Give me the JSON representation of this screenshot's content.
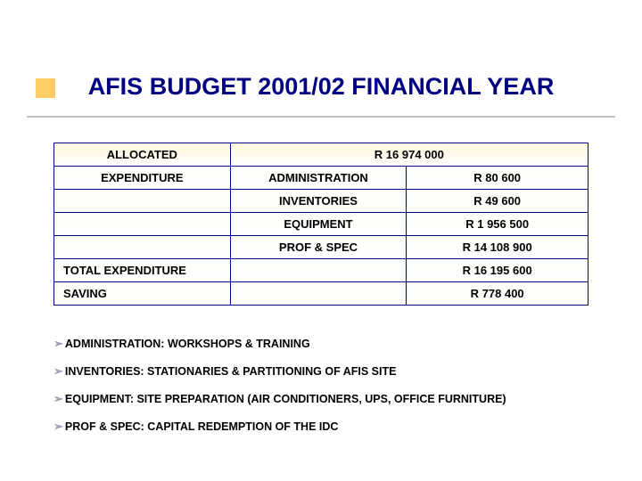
{
  "title": "AFIS BUDGET 2001/02 FINANCIAL YEAR",
  "colors": {
    "title_color": "#000080",
    "border_color": "#000080",
    "bullet_color": "#ffcc66",
    "rule_color": "#c0c0c0",
    "arrow_color": "#9999b0",
    "text_color": "#000000",
    "row1_grad_top": "#fff7db",
    "row_grad_top": "#fdfdf8",
    "background": "#ffffff"
  },
  "table": {
    "col_widths_pct": [
      33,
      33,
      34
    ],
    "rows": [
      {
        "type": "first",
        "cells": [
          {
            "text": "ALLOCATED",
            "align": "c",
            "span": 1
          },
          {
            "text": "R 16 974 000",
            "align": "c",
            "span": 2
          }
        ]
      },
      {
        "cells": [
          {
            "text": "EXPENDITURE",
            "align": "c"
          },
          {
            "text": "ADMINISTRATION",
            "align": "c"
          },
          {
            "text": "R 80 600",
            "align": "c"
          }
        ]
      },
      {
        "cells": [
          {
            "text": "",
            "align": "c"
          },
          {
            "text": "INVENTORIES",
            "align": "c"
          },
          {
            "text": "R 49 600",
            "align": "c"
          }
        ]
      },
      {
        "cells": [
          {
            "text": "",
            "align": "c"
          },
          {
            "text": "EQUIPMENT",
            "align": "c"
          },
          {
            "text": "R 1 956 500",
            "align": "c"
          }
        ]
      },
      {
        "cells": [
          {
            "text": "",
            "align": "c"
          },
          {
            "text": "PROF & SPEC",
            "align": "c"
          },
          {
            "text": "R 14 108 900",
            "align": "c"
          }
        ]
      },
      {
        "cells": [
          {
            "text": "TOTAL EXPENDITURE",
            "align": "l"
          },
          {
            "text": "",
            "align": "c"
          },
          {
            "text": "R 16 195 600",
            "align": "c"
          }
        ]
      },
      {
        "cells": [
          {
            "text": "SAVING",
            "align": "l"
          },
          {
            "text": "",
            "align": "c"
          },
          {
            "text": "R 778 400",
            "align": "c"
          }
        ]
      }
    ]
  },
  "notes": [
    "ADMINISTRATION: WORKSHOPS & TRAINING",
    "INVENTORIES: STATIONARIES & PARTITIONING OF AFIS SITE",
    "EQUIPMENT: SITE PREPARATION (AIR CONDITIONERS, UPS, OFFICE FURNITURE)",
    "PROF & SPEC: CAPITAL REDEMPTION OF THE IDC"
  ],
  "fonts": {
    "title_pt": 27,
    "cell_pt": 13,
    "note_pt": 12.5
  }
}
